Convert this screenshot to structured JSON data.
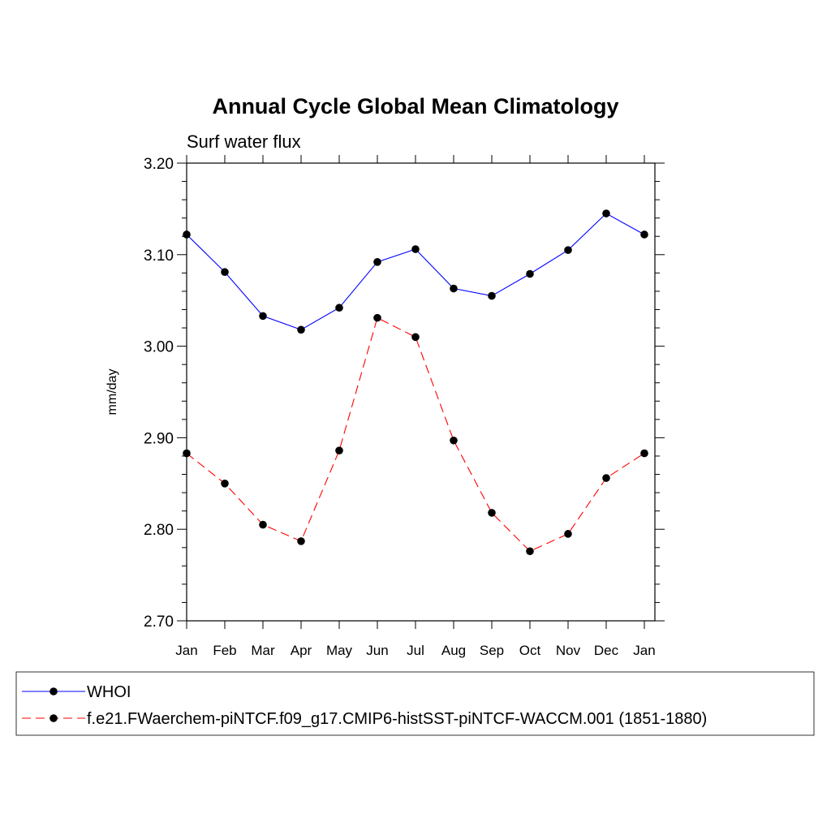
{
  "chart_data": {
    "type": "line",
    "title": "Annual Cycle Global Mean Climatology",
    "subtitle": "Surf water flux",
    "xlabel": "",
    "ylabel": "mm/day",
    "categories": [
      "Jan",
      "Feb",
      "Mar",
      "Apr",
      "May",
      "Jun",
      "Jul",
      "Aug",
      "Sep",
      "Oct",
      "Nov",
      "Dec",
      "Jan"
    ],
    "ylim": [
      2.7,
      3.2
    ],
    "yticks": [
      2.7,
      2.8,
      2.9,
      3.0,
      3.1,
      3.2
    ],
    "ytick_labels": [
      "2.70",
      "2.80",
      "2.90",
      "3.00",
      "3.10",
      "3.20"
    ],
    "ytick_minor_step": 0.02,
    "grid": false,
    "legend_position": "bottom",
    "series": [
      {
        "name": "WHOI",
        "color": "#0000ff",
        "line_style": "solid",
        "marker": "filled-circle",
        "values": [
          3.122,
          3.081,
          3.033,
          3.018,
          3.042,
          3.092,
          3.106,
          3.063,
          3.055,
          3.079,
          3.105,
          3.145,
          3.122
        ]
      },
      {
        "name": "f.e21.FWaerchem-piNTCF.f09_g17.CMIP6-histSST-piNTCF-WACCM.001 (1851-1880)",
        "color": "#ff0000",
        "line_style": "dashed",
        "marker": "filled-circle",
        "values": [
          2.883,
          2.85,
          2.805,
          2.787,
          2.886,
          3.031,
          3.01,
          2.897,
          2.818,
          2.776,
          2.795,
          2.856,
          2.883
        ]
      }
    ]
  }
}
